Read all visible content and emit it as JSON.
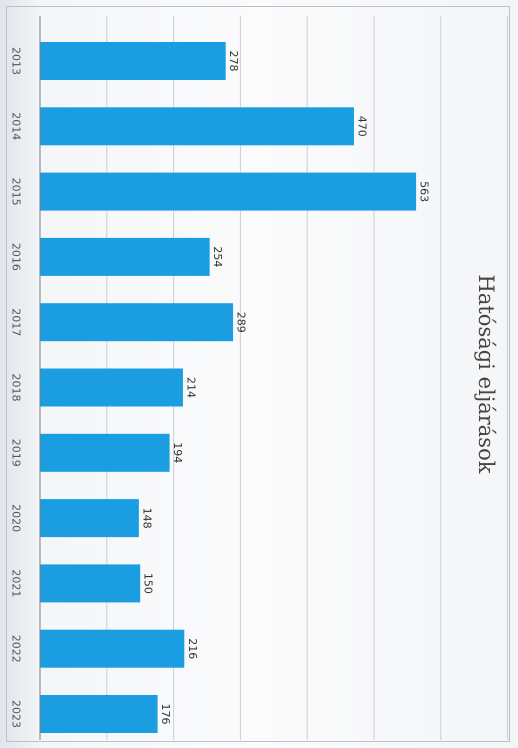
{
  "chart_data": {
    "type": "bar",
    "orientation": "horizontal",
    "title": "Hatósági eljárások",
    "xlabel": "",
    "ylabel": "",
    "categories": [
      "2013",
      "2014",
      "2015",
      "2016",
      "2017",
      "2018",
      "2019",
      "2020",
      "2021",
      "2022",
      "2023"
    ],
    "values": [
      278,
      470,
      563,
      254,
      289,
      214,
      194,
      148,
      150,
      216,
      176
    ],
    "value_axis_range": [
      0,
      700
    ],
    "grid": true,
    "legend": "none",
    "data_labels": true
  },
  "colors": {
    "bar": "#1b9de2",
    "grid": "#c8cfd6",
    "axis": "#7a8087"
  }
}
